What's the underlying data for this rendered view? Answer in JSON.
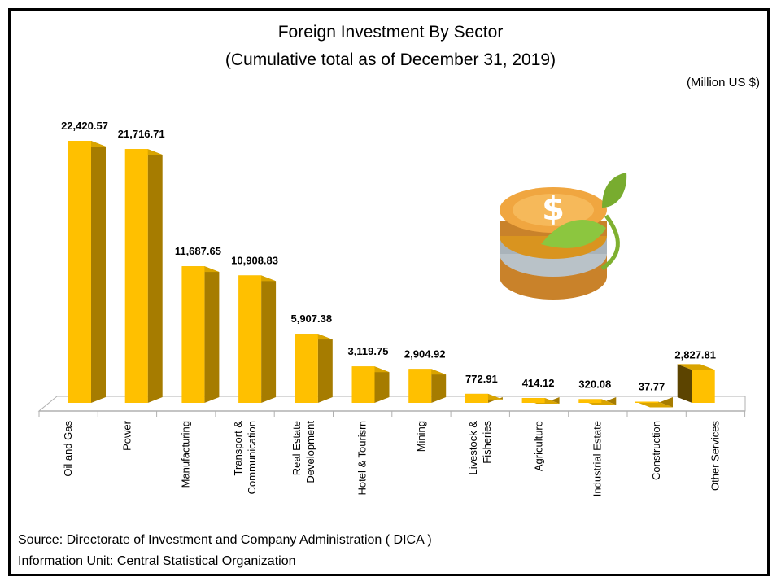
{
  "page": {
    "title": "Foreign Investment By Sector",
    "subtitle": "(Cumulative total as of December 31, 2019)",
    "unit": "(Million US $)",
    "source_line": "Source: Directorate of Investment and Company Administration ( DICA )",
    "info_line": "Information Unit:  Central Statistical Organization"
  },
  "colors": {
    "bar_front": "#FFC000",
    "bar_side": "#A67C00",
    "bar_top": "#D9A400",
    "last_bar_side": "#5C4400",
    "floor_line": "#B0B0B0"
  },
  "chart_data": {
    "type": "bar",
    "title": "Foreign Investment By Sector",
    "subtitle": "(Cumulative total as of December 31, 2019)",
    "ylabel": "",
    "xlabel": "",
    "unit": "(Million US $)",
    "grid": false,
    "legend": "none",
    "categories": [
      [
        "Oil and Gas"
      ],
      [
        "Power"
      ],
      [
        "Manufacturing"
      ],
      [
        "Transport &",
        "Communication"
      ],
      [
        "Real Estate",
        "Development"
      ],
      [
        "Hotel & Tourism"
      ],
      [
        "Mining"
      ],
      [
        "Livestock &",
        "Fisheries"
      ],
      [
        "Agriculture"
      ],
      [
        "Industrial Estate"
      ],
      [
        "Construction"
      ],
      [
        "Other Services"
      ]
    ],
    "values": [
      22420.57,
      21716.71,
      11687.65,
      10908.83,
      5907.38,
      3119.75,
      2904.92,
      772.91,
      414.12,
      320.08,
      37.77,
      2827.81
    ],
    "value_labels": [
      "22,420.57",
      "21,716.71",
      "11,687.65",
      "10,908.83",
      "5,907.38",
      "3,119.75",
      "2,904.92",
      "772.91",
      "414.12",
      "320.08",
      "37.77",
      "2,827.81"
    ]
  }
}
